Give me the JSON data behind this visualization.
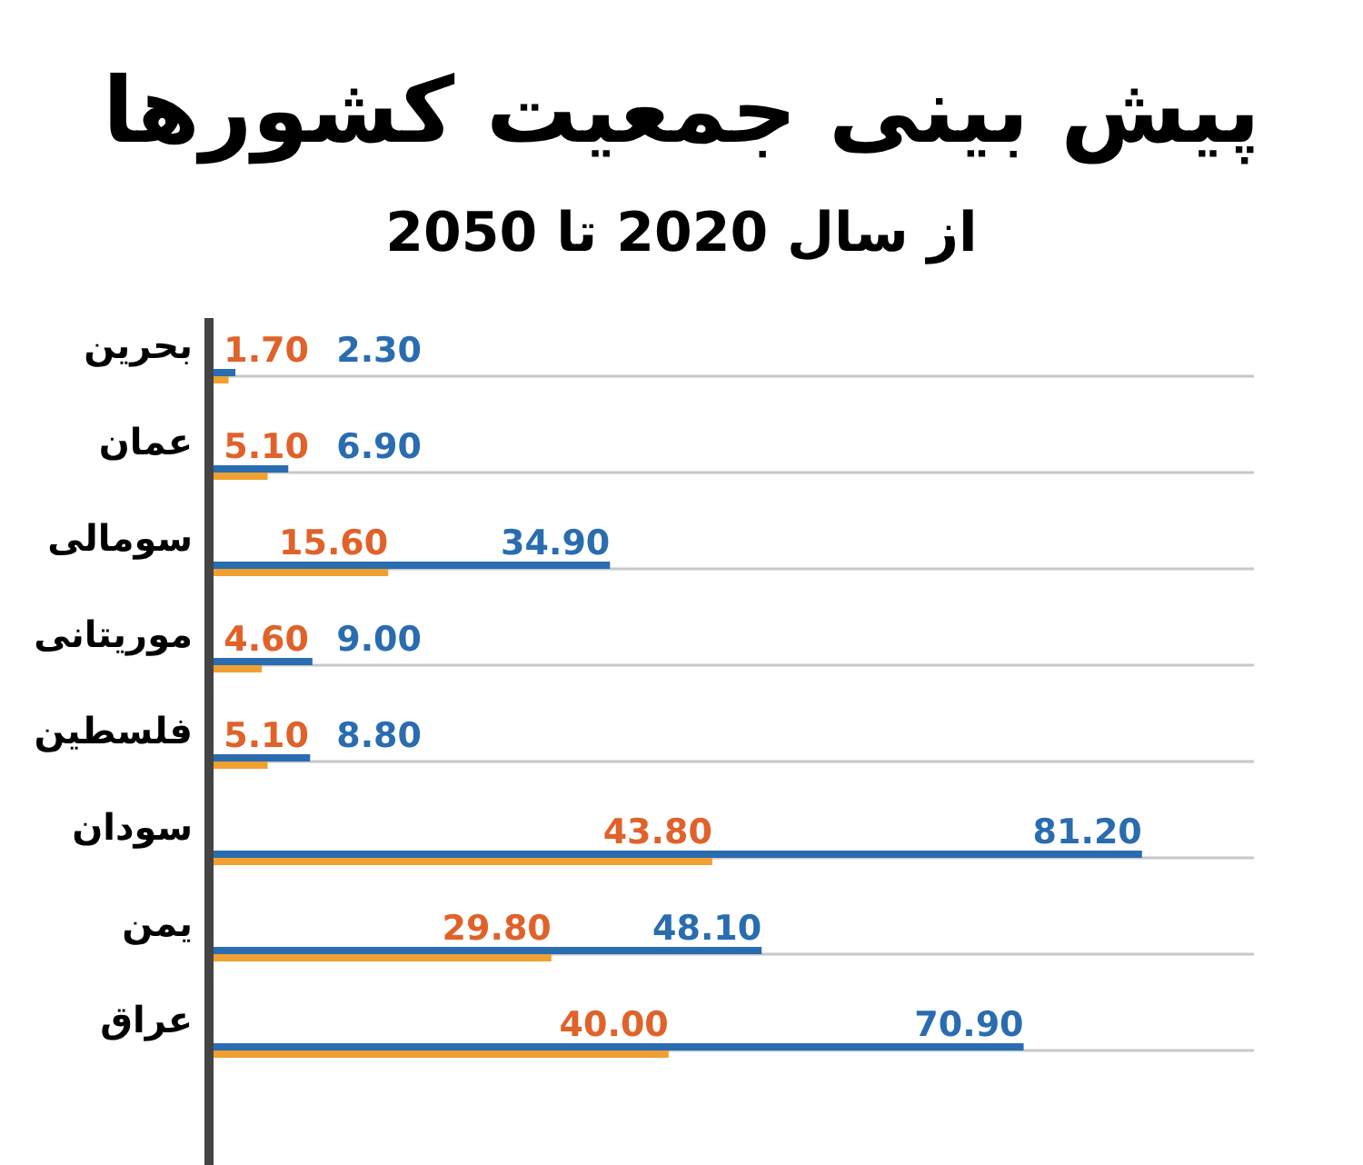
{
  "chart_data": {
    "type": "bar",
    "orientation": "horizontal",
    "title": "پیش بینی جمعیت کشورها",
    "subtitle": "از سال 2020 تا 2050",
    "categories": [
      "بحرین",
      "عمان",
      "سومالی",
      "موریتانی",
      "فلسطین",
      "سودان",
      "یمن",
      "عراق"
    ],
    "grid": "y",
    "series": [
      {
        "name": null,
        "color": "#2a6cb0",
        "values": [
          2.3,
          6.9,
          34.9,
          9.0,
          8.8,
          81.2,
          48.1,
          70.9
        ],
        "value_labels": [
          "2.30",
          "6.90",
          "34.90",
          "9.00",
          "8.80",
          "81.20",
          "48.10",
          "70.90"
        ]
      },
      {
        "name": null,
        "color": "#f0a030",
        "values": [
          1.7,
          5.1,
          15.6,
          4.6,
          5.1,
          43.8,
          29.8,
          40.0
        ],
        "value_labels": [
          "1.70",
          "5.10",
          "15.60",
          "4.60",
          "5.10",
          "43.80",
          "29.80",
          "40.00"
        ]
      }
    ]
  }
}
